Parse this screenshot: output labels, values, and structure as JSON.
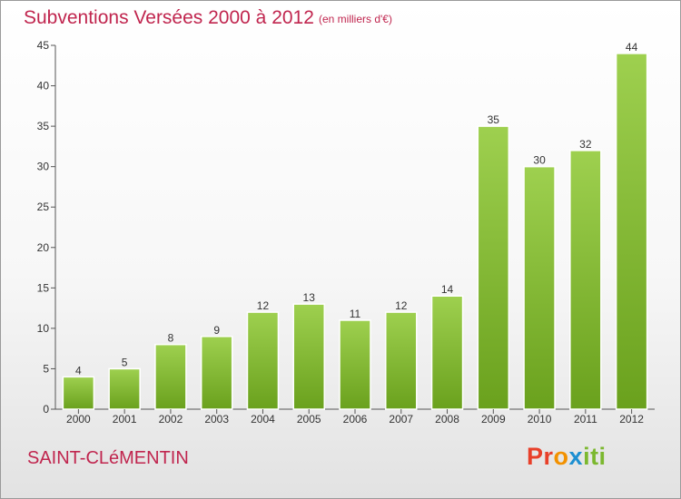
{
  "title": "Subventions Versées 2000 à 2012",
  "subtitle": "(en milliers d'€)",
  "place": "SAINT-CLéMENTIN",
  "logo": {
    "p1": "Pr",
    "p2": "o",
    "p3": "x",
    "p4": "iti"
  },
  "colors": {
    "title": "#c0254e",
    "bar_top": "#9ed04f",
    "bar_bottom": "#6aa11d"
  },
  "chart_data": {
    "type": "bar",
    "categories": [
      "2000",
      "2001",
      "2002",
      "2003",
      "2004",
      "2005",
      "2006",
      "2007",
      "2008",
      "2009",
      "2010",
      "2011",
      "2012"
    ],
    "values": [
      4,
      5,
      8,
      9,
      12,
      13,
      11,
      12,
      14,
      35,
      30,
      32,
      44
    ],
    "title": "Subventions Versées 2000 à 2012",
    "ylim": [
      0,
      45
    ],
    "yticks": [
      0,
      5,
      10,
      15,
      20,
      25,
      30,
      35,
      40,
      45
    ],
    "grid": false
  }
}
